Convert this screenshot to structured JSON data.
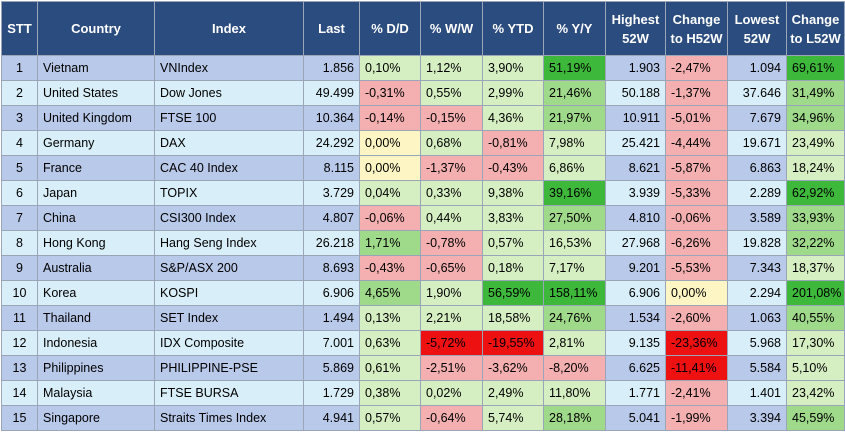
{
  "headers": [
    "STT",
    "Country",
    "Index",
    "Last",
    "% D/D",
    "% W/W",
    "% YTD",
    "% Y/Y",
    "Highest 52W",
    "Change to H52W",
    "Lowest 52W",
    "Change to L52W"
  ],
  "colors": {
    "header_bg": "#2b4c7e",
    "row_odd": "#b9c9ea",
    "row_even": "#d8eef8",
    "neg_light": "#f4b0b0",
    "neg_strong": "#ee1111",
    "pos_light": "#d6efc2",
    "pos_mid": "#9fd98a",
    "pos_strong": "#3eb83a",
    "neutral": "#fdf5c4"
  },
  "rows": [
    [
      "1",
      "Vietnam",
      "VNIndex",
      "1.856",
      "0,10%",
      "1,12%",
      "3,90%",
      "51,19%",
      "1.903",
      "-2,47%",
      "1.094",
      "69,61%"
    ],
    [
      "2",
      "United States",
      "Dow Jones",
      "49.499",
      "-0,31%",
      "0,55%",
      "2,99%",
      "21,46%",
      "50.188",
      "-1,37%",
      "37.646",
      "31,49%"
    ],
    [
      "3",
      "United Kingdom",
      "FTSE 100",
      "10.364",
      "-0,14%",
      "-0,15%",
      "4,36%",
      "21,97%",
      "10.911",
      "-5,01%",
      "7.679",
      "34,96%"
    ],
    [
      "4",
      "Germany",
      "DAX",
      "24.292",
      "0,00%",
      "0,68%",
      "-0,81%",
      "7,98%",
      "25.421",
      "-4,44%",
      "19.671",
      "23,49%"
    ],
    [
      "5",
      "France",
      "CAC 40 Index",
      "8.115",
      "0,00%",
      "-1,37%",
      "-0,43%",
      "6,86%",
      "8.621",
      "-5,87%",
      "6.863",
      "18,24%"
    ],
    [
      "6",
      "Japan",
      "TOPIX",
      "3.729",
      "0,04%",
      "0,33%",
      "9,38%",
      "39,16%",
      "3.939",
      "-5,33%",
      "2.289",
      "62,92%"
    ],
    [
      "7",
      "China",
      "CSI300 Index",
      "4.807",
      "-0,06%",
      "0,44%",
      "3,83%",
      "27,50%",
      "4.810",
      "-0,06%",
      "3.589",
      "33,93%"
    ],
    [
      "8",
      "Hong Kong",
      "Hang Seng Index",
      "26.218",
      "1,71%",
      "-0,78%",
      "0,57%",
      "16,53%",
      "27.968",
      "-6,26%",
      "19.828",
      "32,22%"
    ],
    [
      "9",
      "Australia",
      "S&P/ASX 200",
      "8.693",
      "-0,43%",
      "-0,65%",
      "0,18%",
      "7,17%",
      "9.201",
      "-5,53%",
      "7.343",
      "18,37%"
    ],
    [
      "10",
      "Korea",
      "KOSPI",
      "6.906",
      "4,65%",
      "1,90%",
      "56,59%",
      "158,11%",
      "6.906",
      "0,00%",
      "2.294",
      "201,08%"
    ],
    [
      "11",
      "Thailand",
      "SET Index",
      "1.494",
      "0,13%",
      "2,21%",
      "18,58%",
      "24,76%",
      "1.534",
      "-2,60%",
      "1.063",
      "40,55%"
    ],
    [
      "12",
      "Indonesia",
      "IDX Composite",
      "7.001",
      "0,63%",
      "-5,72%",
      "-19,55%",
      "2,81%",
      "9.135",
      "-23,36%",
      "5.968",
      "17,30%"
    ],
    [
      "13",
      "Philippines",
      "PHILIPPINE-PSE",
      "5.869",
      "0,61%",
      "-2,51%",
      "-3,62%",
      "-8,20%",
      "6.625",
      "-11,41%",
      "5.584",
      "5,10%"
    ],
    [
      "14",
      "Malaysia",
      "FTSE BURSA",
      "1.729",
      "0,38%",
      "0,02%",
      "2,49%",
      "11,80%",
      "1.771",
      "-2,41%",
      "1.401",
      "23,42%"
    ],
    [
      "15",
      "Singapore",
      "Straits Times Index",
      "4.941",
      "0,57%",
      "-0,64%",
      "5,74%",
      "28,18%",
      "5.041",
      "-1,99%",
      "3.394",
      "45,59%"
    ]
  ]
}
